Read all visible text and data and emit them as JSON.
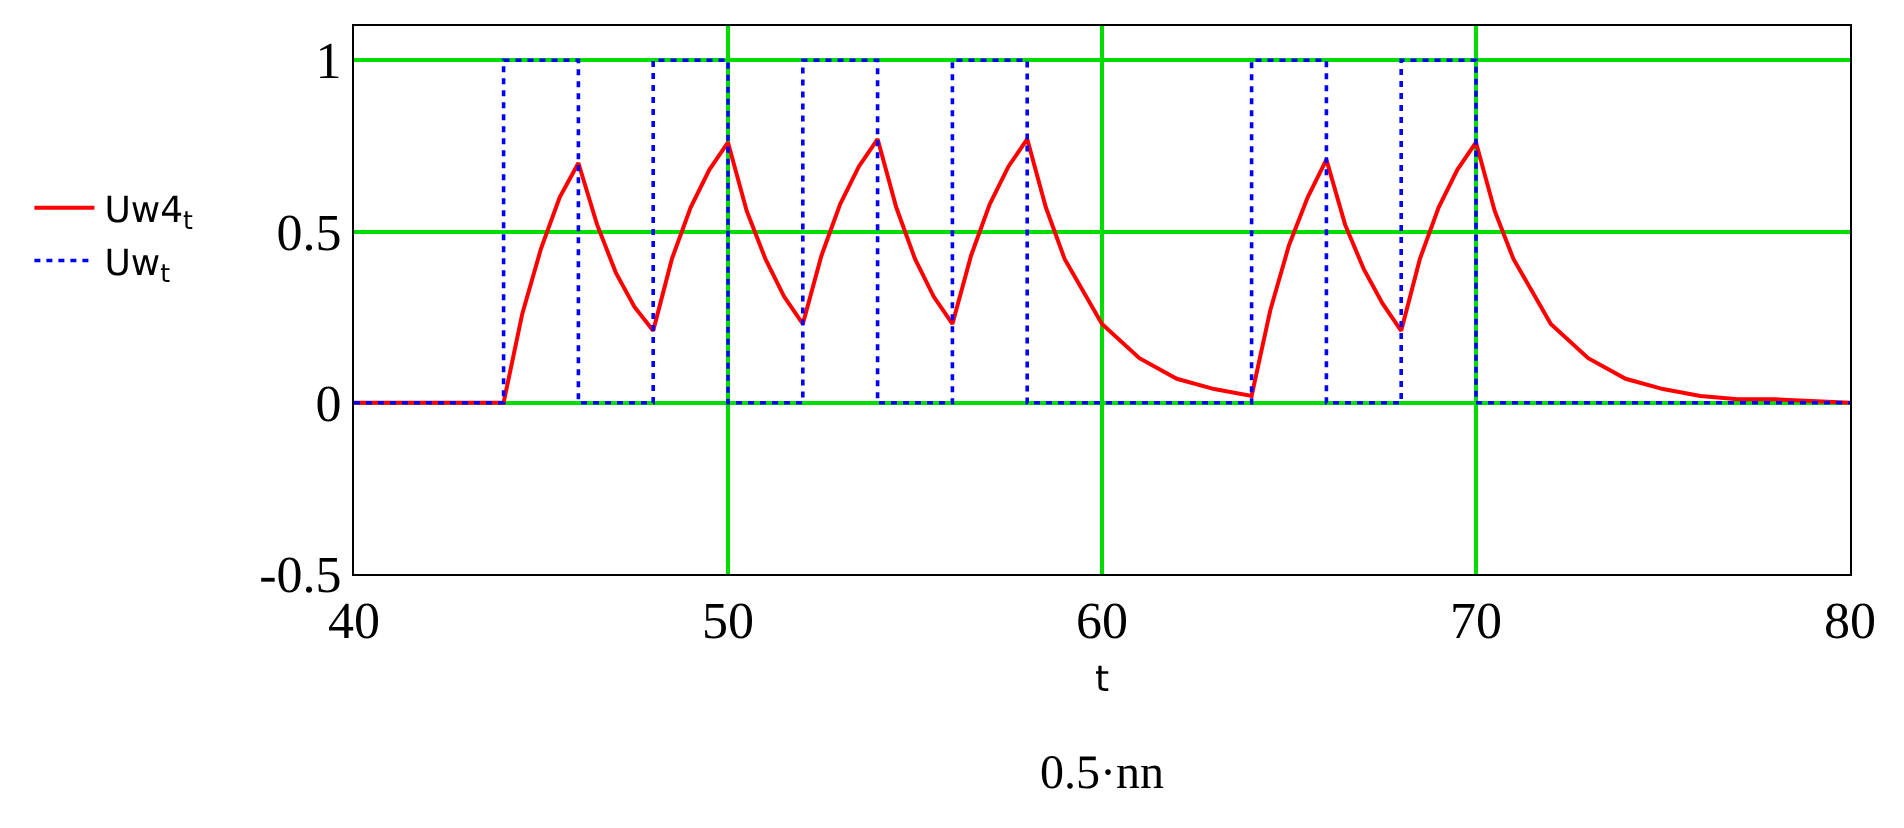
{
  "chart_data": {
    "type": "line",
    "xlabel": "t",
    "annotations": [
      "0.5·nn"
    ],
    "xlim": [
      40,
      80
    ],
    "ylim": [
      -0.5,
      1.1
    ],
    "xticks": [
      40,
      50,
      60,
      70,
      80
    ],
    "yticks": [
      -0.5,
      0,
      0.5,
      1
    ],
    "grid": true,
    "legend": "left",
    "marker": "none",
    "series": [
      {
        "name": "Uw4$_{t}$",
        "color": "#ff0000",
        "line_style": "solid",
        "x": [
          40,
          44,
          44.5,
          45,
          45.5,
          46,
          46.5,
          47,
          47.5,
          48,
          48.5,
          49,
          49.5,
          50,
          50.5,
          51,
          51.5,
          52,
          52.5,
          53,
          53.5,
          54,
          54.5,
          55,
          55.5,
          56,
          56.5,
          57,
          57.5,
          58,
          58.5,
          59,
          60,
          61,
          62,
          63,
          64,
          64.5,
          65,
          65.5,
          66,
          66.5,
          67,
          67.5,
          68,
          68.5,
          69,
          69.5,
          70,
          70.5,
          71,
          72,
          73,
          74,
          75,
          76,
          77,
          78,
          80
        ],
        "values": [
          0,
          0,
          0.26,
          0.45,
          0.6,
          0.7,
          0.52,
          0.38,
          0.28,
          0.21,
          0.42,
          0.57,
          0.68,
          0.76,
          0.56,
          0.42,
          0.31,
          0.23,
          0.43,
          0.58,
          0.69,
          0.77,
          0.57,
          0.42,
          0.31,
          0.23,
          0.43,
          0.58,
          0.69,
          0.77,
          0.57,
          0.42,
          0.23,
          0.13,
          0.07,
          0.04,
          0.02,
          0.27,
          0.46,
          0.6,
          0.71,
          0.52,
          0.39,
          0.29,
          0.21,
          0.42,
          0.57,
          0.68,
          0.76,
          0.56,
          0.42,
          0.23,
          0.13,
          0.07,
          0.04,
          0.02,
          0.01,
          0.01,
          0
        ]
      },
      {
        "name": "Uw$_{t}$",
        "color": "#0000ff",
        "type": "step",
        "line_style": "dotted",
        "x": [
          40,
          44,
          46,
          48,
          50,
          52,
          54,
          56,
          58,
          64,
          66,
          68,
          70,
          80
        ],
        "values": [
          0,
          1,
          0,
          1,
          0,
          1,
          0,
          1,
          0,
          1,
          0,
          1,
          0,
          0
        ]
      }
    ]
  }
}
